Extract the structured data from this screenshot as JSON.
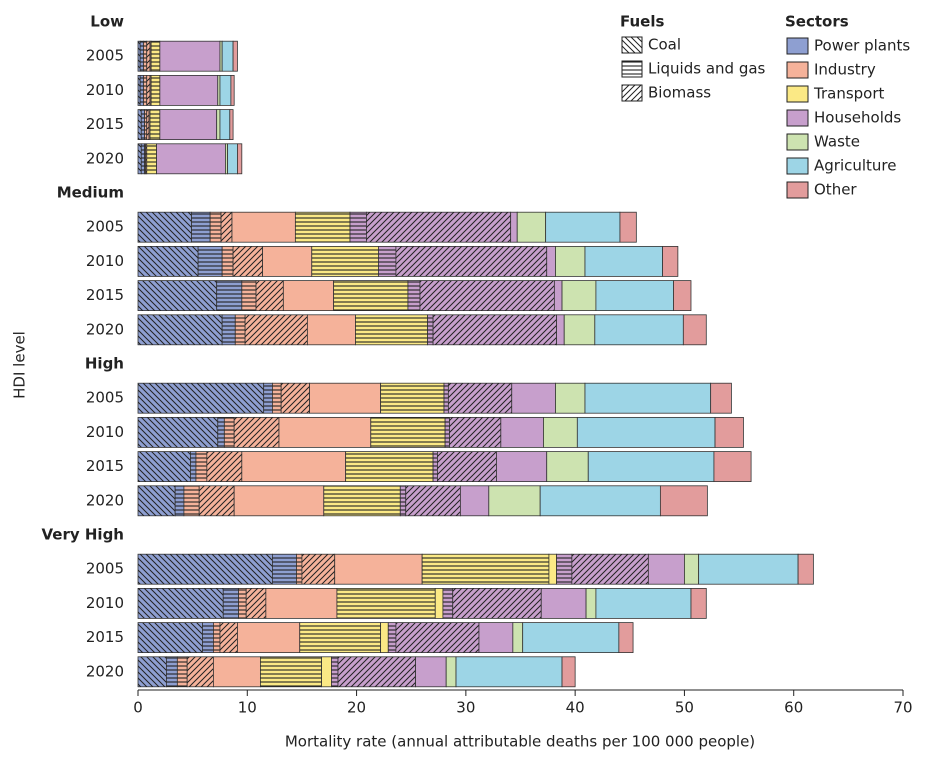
{
  "chart_data": {
    "type": "bar",
    "orientation": "horizontal",
    "stacked": true,
    "x_label": "Mortality rate (annual attributable deaths per 100 000 people)",
    "y_label": "HDI level",
    "xlim": [
      0,
      70
    ],
    "xticks": [
      0,
      10,
      20,
      30,
      40,
      50,
      60,
      70
    ],
    "fuels_title": "Fuels",
    "sectors_title": "Sectors",
    "fuels": [
      {
        "name": "Coal",
        "pattern": "backslash"
      },
      {
        "name": "Liquids and gas",
        "pattern": "horizontal"
      },
      {
        "name": "Biomass",
        "pattern": "slash"
      }
    ],
    "groups": [
      {
        "name": "Low",
        "categories": [
          "2005",
          "2010",
          "2015",
          "2020"
        ]
      },
      {
        "name": "Medium",
        "categories": [
          "2005",
          "2010",
          "2015",
          "2020"
        ]
      },
      {
        "name": "High",
        "categories": [
          "2005",
          "2010",
          "2015",
          "2020"
        ]
      },
      {
        "name": "Very High",
        "categories": [
          "2005",
          "2010",
          "2015",
          "2020"
        ]
      }
    ],
    "series": [
      {
        "name": "Power plants",
        "color": "#8e9fd1",
        "values": [
          [
            0.2,
            0.3,
            0,
            0
          ],
          [
            0.2,
            0.3,
            0,
            0
          ],
          [
            0.3,
            0.3,
            0,
            0
          ],
          [
            0.3,
            0.3,
            0,
            0
          ],
          [
            4.9,
            1.7,
            0,
            0
          ],
          [
            5.5,
            2.2,
            0,
            0
          ],
          [
            7.2,
            2.3,
            0,
            0
          ],
          [
            7.7,
            1.2,
            0,
            0
          ],
          [
            11.5,
            0.8,
            0,
            0
          ],
          [
            7.3,
            0.6,
            0,
            0
          ],
          [
            4.8,
            0.5,
            0,
            0
          ],
          [
            3.4,
            0.8,
            0,
            0
          ],
          [
            12.3,
            2.2,
            0,
            0
          ],
          [
            7.8,
            1.4,
            0,
            0
          ],
          [
            5.9,
            1.0,
            0,
            0
          ],
          [
            2.6,
            1.0,
            0,
            0
          ]
        ]
      },
      {
        "name": "Industry",
        "color": "#f5b29a",
        "values": [
          [
            0,
            0.3,
            0.3,
            0.1
          ],
          [
            0,
            0.3,
            0.3,
            0.1
          ],
          [
            0,
            0.2,
            0.2,
            0.1
          ],
          [
            0,
            0.1,
            0.1,
            0
          ],
          [
            0,
            1.0,
            1.0,
            5.8
          ],
          [
            0,
            1.0,
            2.7,
            4.5
          ],
          [
            0,
            1.3,
            2.5,
            4.6
          ],
          [
            0,
            0.9,
            5.7,
            4.4
          ],
          [
            0,
            0.8,
            2.6,
            6.5
          ],
          [
            0,
            0.9,
            4.1,
            8.4
          ],
          [
            0,
            1.0,
            3.2,
            9.5
          ],
          [
            0,
            1.4,
            3.2,
            8.2
          ],
          [
            0,
            0.5,
            3.0,
            8.0
          ],
          [
            0,
            0.7,
            1.8,
            6.5
          ],
          [
            0,
            0.6,
            1.6,
            5.7
          ],
          [
            0,
            0.9,
            2.4,
            4.3
          ]
        ]
      },
      {
        "name": "Transport",
        "color": "#fbe985",
        "values": [
          [
            0,
            0.8,
            0,
            0
          ],
          [
            0,
            0.8,
            0,
            0
          ],
          [
            0,
            0.9,
            0,
            0
          ],
          [
            0,
            0.9,
            0,
            0
          ],
          [
            0,
            5.0,
            0,
            0
          ],
          [
            0,
            6.1,
            0,
            0
          ],
          [
            0,
            6.8,
            0,
            0
          ],
          [
            0,
            6.6,
            0,
            0
          ],
          [
            0,
            5.8,
            0,
            0
          ],
          [
            0,
            6.8,
            0,
            0
          ],
          [
            0,
            8.0,
            0,
            0
          ],
          [
            0,
            7.0,
            0,
            0
          ],
          [
            0,
            11.6,
            0,
            0.7
          ],
          [
            0,
            9.0,
            0,
            0.7
          ],
          [
            0,
            7.4,
            0,
            0.7
          ],
          [
            0,
            5.6,
            0,
            0.9
          ]
        ]
      },
      {
        "name": "Households",
        "color": "#c79fcc",
        "values": [
          [
            0,
            0,
            0,
            5.5
          ],
          [
            0,
            0,
            0,
            5.3
          ],
          [
            0,
            0,
            0,
            5.2
          ],
          [
            0,
            0,
            0,
            6.3
          ],
          [
            0,
            1.5,
            13.2,
            0.6
          ],
          [
            0,
            1.6,
            13.8,
            0.8
          ],
          [
            0,
            1.1,
            12.3,
            0.7
          ],
          [
            0,
            0.5,
            11.3,
            0.7
          ],
          [
            0,
            0.4,
            5.8,
            4.0
          ],
          [
            0,
            0.4,
            4.7,
            3.9
          ],
          [
            0,
            0.4,
            5.4,
            4.6
          ],
          [
            0,
            0.5,
            5.0,
            2.6
          ],
          [
            0,
            1.4,
            7.0,
            3.3
          ],
          [
            0,
            0.9,
            8.1,
            4.1
          ],
          [
            0,
            0.7,
            7.6,
            3.1
          ],
          [
            0,
            0.6,
            7.1,
            2.8
          ]
        ]
      },
      {
        "name": "Waste",
        "color": "#cde3b0",
        "values": [
          [
            0,
            0,
            0,
            0.2
          ],
          [
            0,
            0,
            0,
            0.2
          ],
          [
            0,
            0,
            0,
            0.3
          ],
          [
            0,
            0,
            0,
            0.2
          ],
          [
            0,
            0,
            0,
            2.6
          ],
          [
            0,
            0,
            0,
            2.7
          ],
          [
            0,
            0,
            0,
            3.1
          ],
          [
            0,
            0,
            0,
            2.8
          ],
          [
            0,
            0,
            0,
            2.7
          ],
          [
            0,
            0,
            0,
            3.1
          ],
          [
            0,
            0,
            0,
            3.8
          ],
          [
            0,
            0,
            0,
            4.7
          ],
          [
            0,
            0,
            0,
            1.3
          ],
          [
            0,
            0,
            0,
            0.9
          ],
          [
            0,
            0,
            0,
            0.9
          ],
          [
            0,
            0,
            0,
            0.9
          ]
        ]
      },
      {
        "name": "Agriculture",
        "color": "#9dd5e6",
        "values": [
          [
            0,
            0,
            0,
            1.0
          ],
          [
            0,
            0,
            0,
            1.0
          ],
          [
            0,
            0,
            0,
            0.9
          ],
          [
            0,
            0,
            0,
            0.9
          ],
          [
            0,
            0,
            0,
            6.8
          ],
          [
            0,
            0,
            0,
            7.1
          ],
          [
            0,
            0,
            0,
            7.1
          ],
          [
            0,
            0,
            0,
            8.1
          ],
          [
            0,
            0,
            0,
            11.5
          ],
          [
            0,
            0,
            0,
            12.6
          ],
          [
            0,
            0,
            0,
            11.5
          ],
          [
            0,
            0,
            0,
            11.0
          ],
          [
            0,
            0,
            0,
            9.1
          ],
          [
            0,
            0,
            0,
            8.7
          ],
          [
            0,
            0,
            0,
            8.8
          ],
          [
            0,
            0,
            0,
            9.7
          ]
        ]
      },
      {
        "name": "Other",
        "color": "#e29c9c",
        "values": [
          [
            0,
            0,
            0,
            0.4
          ],
          [
            0,
            0,
            0,
            0.3
          ],
          [
            0,
            0,
            0,
            0.3
          ],
          [
            0,
            0,
            0,
            0.4
          ],
          [
            0,
            0,
            0,
            1.5
          ],
          [
            0,
            0,
            0,
            1.4
          ],
          [
            0,
            0,
            0,
            1.6
          ],
          [
            0,
            0,
            0,
            2.1
          ],
          [
            0,
            0,
            0,
            1.9
          ],
          [
            0,
            0,
            0,
            2.6
          ],
          [
            0,
            0,
            0,
            3.4
          ],
          [
            0,
            0,
            0,
            4.3
          ],
          [
            0,
            0,
            0,
            1.4
          ],
          [
            0,
            0,
            0,
            1.4
          ],
          [
            0,
            0,
            0,
            1.3
          ],
          [
            0,
            0,
            0,
            1.2
          ]
        ]
      }
    ]
  }
}
